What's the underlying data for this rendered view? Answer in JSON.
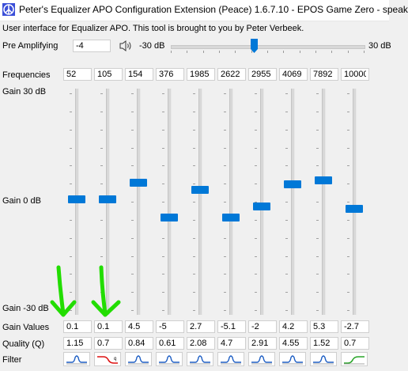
{
  "window": {
    "title": "Peter's Equalizer APO Configuration Extension (Peace) 1.6.7.10 - EPOS Game Zero - speak",
    "subtitle": "User interface for Equalizer APO. This tool is brought to you by Peter Verbeek."
  },
  "pre_amp": {
    "label": "Pre Amplifying",
    "value": "-4",
    "min_label": "-30 dB",
    "max_label": "30 dB",
    "icon": "speaker-icon",
    "level_db": -4
  },
  "labels": {
    "frequencies": "Frequencies",
    "gain_top": "Gain 30 dB",
    "gain_mid": "Gain 0 dB",
    "gain_bottom": "Gain -30 dB",
    "gain_values": "Gain Values",
    "quality": "Quality (Q)",
    "filter": "Filter"
  },
  "bands": [
    {
      "freq": "52",
      "gain": "0.1",
      "q": "1.15",
      "gain_db": 0.1,
      "filter": "peak"
    },
    {
      "freq": "105",
      "gain": "0.1",
      "q": "0.7",
      "gain_db": 0.1,
      "filter": "high-shelf-red"
    },
    {
      "freq": "154",
      "gain": "4.5",
      "q": "0.84",
      "gain_db": 4.5,
      "filter": "peak"
    },
    {
      "freq": "376",
      "gain": "-5",
      "q": "0.61",
      "gain_db": -5,
      "filter": "peak"
    },
    {
      "freq": "1985",
      "gain": "2.7",
      "q": "2.08",
      "gain_db": 2.7,
      "filter": "peak"
    },
    {
      "freq": "2622",
      "gain": "-5.1",
      "q": "4.7",
      "gain_db": -5.1,
      "filter": "peak"
    },
    {
      "freq": "2955",
      "gain": "-2",
      "q": "2.91",
      "gain_db": -2,
      "filter": "peak"
    },
    {
      "freq": "4069",
      "gain": "4.2",
      "q": "4.55",
      "gain_db": 4.2,
      "filter": "peak"
    },
    {
      "freq": "7892",
      "gain": "5.3",
      "q": "1.52",
      "gain_db": 5.3,
      "filter": "peak"
    },
    {
      "freq": "10000",
      "gain": "-2.7",
      "q": "0.7",
      "gain_db": -2.7,
      "filter": "low-shelf-green"
    }
  ],
  "annotations": {
    "arrow_color": "#22dd00",
    "thumb_color": "#0078d7"
  }
}
